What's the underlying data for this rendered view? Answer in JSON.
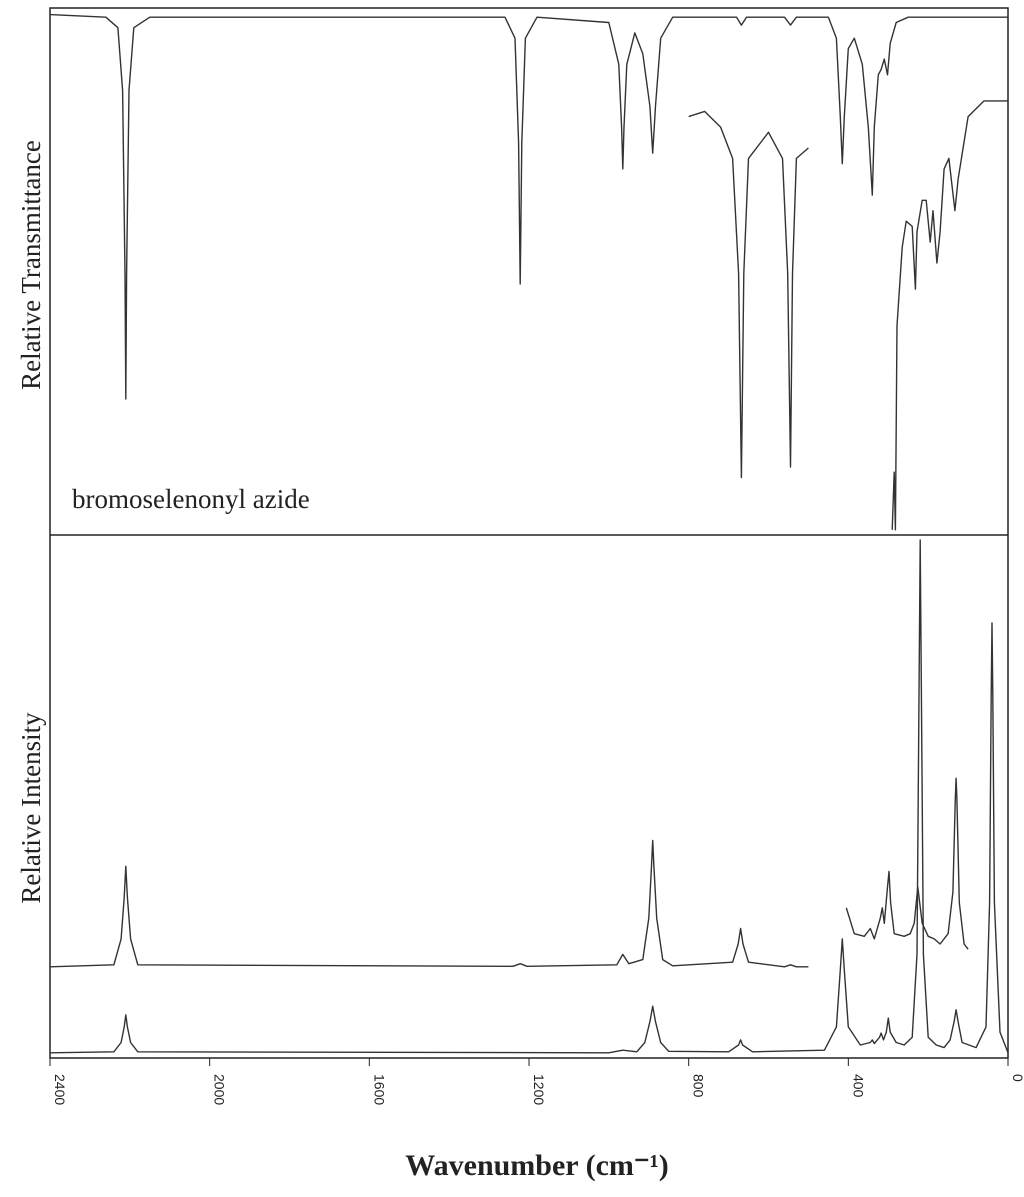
{
  "chart_data": [
    {
      "type": "line",
      "y_label": "Relative Transmittance",
      "annotation": "bromoselenonyl azide",
      "xlim": [
        2400,
        0
      ],
      "ylim": [
        0,
        1
      ],
      "series": [
        {
          "color": "#333333",
          "x": [
            2400,
            2260,
            2230,
            2218,
            2212,
            2210,
            2208,
            2202,
            2190,
            2150,
            1260,
            1235,
            1226,
            1222,
            1218,
            1209,
            1180,
            1000,
            975,
            968,
            965,
            962,
            955,
            935,
            915,
            897,
            890,
            883,
            870,
            840,
            680,
            668,
            655,
            560,
            545,
            530,
            450,
            430,
            420,
            415,
            410,
            400,
            385,
            365,
            350,
            340,
            335,
            325,
            318,
            310,
            302,
            295,
            280,
            250,
            0
          ],
          "values": [
            0.995,
            0.99,
            0.97,
            0.85,
            0.5,
            0.26,
            0.5,
            0.85,
            0.97,
            0.99,
            0.99,
            0.95,
            0.75,
            0.48,
            0.75,
            0.95,
            0.99,
            0.98,
            0.9,
            0.78,
            0.7,
            0.78,
            0.9,
            0.96,
            0.92,
            0.82,
            0.73,
            0.82,
            0.95,
            0.99,
            0.99,
            0.975,
            0.99,
            0.99,
            0.975,
            0.99,
            0.99,
            0.95,
            0.8,
            0.71,
            0.8,
            0.93,
            0.95,
            0.9,
            0.78,
            0.65,
            0.78,
            0.88,
            0.89,
            0.91,
            0.88,
            0.94,
            0.98,
            0.99,
            0.99
          ]
        },
        {
          "color": "#333333",
          "x": [
            800,
            760,
            720,
            690,
            675,
            668,
            662,
            650,
            600,
            565,
            552,
            545,
            540,
            530,
            500
          ],
          "values": [
            0.8,
            0.81,
            0.78,
            0.72,
            0.5,
            0.11,
            0.5,
            0.72,
            0.77,
            0.72,
            0.5,
            0.13,
            0.5,
            0.72,
            0.74
          ]
        },
        {
          "color": "#333333",
          "x": [
            290,
            285,
            282,
            278,
            265,
            255,
            240,
            232,
            228,
            215,
            205,
            195,
            188,
            178,
            170,
            160,
            148,
            133,
            125,
            100,
            60,
            20,
            0
          ],
          "values": [
            0.01,
            0.12,
            0.01,
            0.4,
            0.55,
            0.6,
            0.59,
            0.47,
            0.58,
            0.64,
            0.64,
            0.56,
            0.62,
            0.52,
            0.58,
            0.7,
            0.72,
            0.62,
            0.68,
            0.8,
            0.83,
            0.83,
            0.83
          ]
        }
      ]
    },
    {
      "type": "line",
      "y_label": "Relative Intensity",
      "x_label": "Wavenumber (cm⁻¹)",
      "xlim": [
        2400,
        0
      ],
      "ylim": [
        0,
        1
      ],
      "xticks": [
        2400,
        2000,
        1600,
        1200,
        800,
        400,
        0
      ],
      "series": [
        {
          "color": "#333333",
          "x": [
            2400,
            2240,
            2222,
            2214,
            2210,
            2206,
            2198,
            2180,
            1000,
            965,
            930,
            910,
            897,
            890,
            883,
            870,
            850,
            700,
            675,
            670,
            665,
            640,
            460,
            430,
            420,
            415,
            410,
            400,
            370,
            345,
            340,
            335,
            322,
            318,
            312,
            305,
            300,
            295,
            280,
            260,
            240,
            228,
            222,
            220,
            218,
            212,
            200,
            180,
            160,
            145,
            135,
            130,
            125,
            115,
            80,
            55,
            46,
            42,
            40,
            38,
            34,
            20,
            0
          ],
          "values": [
            0.01,
            0.012,
            0.03,
            0.06,
            0.083,
            0.06,
            0.03,
            0.012,
            0.01,
            0.015,
            0.012,
            0.03,
            0.07,
            0.1,
            0.07,
            0.03,
            0.013,
            0.012,
            0.025,
            0.035,
            0.025,
            0.012,
            0.015,
            0.06,
            0.17,
            0.23,
            0.17,
            0.06,
            0.025,
            0.03,
            0.035,
            0.028,
            0.04,
            0.048,
            0.035,
            0.05,
            0.077,
            0.05,
            0.03,
            0.025,
            0.04,
            0.2,
            0.8,
            1.0,
            0.8,
            0.2,
            0.04,
            0.025,
            0.02,
            0.035,
            0.07,
            0.093,
            0.07,
            0.03,
            0.02,
            0.06,
            0.3,
            0.7,
            0.84,
            0.7,
            0.3,
            0.05,
            0.01
          ]
        },
        {
          "color": "#333333",
          "x": [
            2400,
            2240,
            2222,
            2214,
            2210,
            2206,
            2198,
            2180,
            1240,
            1222,
            1205,
            980,
            965,
            950,
            915,
            900,
            893,
            890,
            887,
            880,
            865,
            840,
            690,
            676,
            670,
            664,
            650,
            560,
            545,
            530,
            500,
            450,
            405,
            385,
            360,
            345,
            335,
            320,
            315,
            310,
            302,
            298,
            294,
            285,
            260,
            245,
            235,
            226,
            215,
            200,
            185,
            170,
            150,
            138,
            132,
            130,
            128,
            122,
            110,
            100
          ],
          "values": [
            0.176,
            0.18,
            0.23,
            0.31,
            0.37,
            0.31,
            0.23,
            0.18,
            0.177,
            0.182,
            0.177,
            0.18,
            0.2,
            0.182,
            0.19,
            0.27,
            0.37,
            0.42,
            0.37,
            0.27,
            0.19,
            0.178,
            0.185,
            0.22,
            0.25,
            0.22,
            0.185,
            0.176,
            0.18,
            0.176,
            0.176,
            null,
            0.29,
            0.24,
            0.235,
            0.25,
            0.23,
            0.27,
            0.29,
            0.26,
            0.33,
            0.36,
            0.3,
            0.24,
            0.235,
            0.24,
            0.26,
            0.33,
            0.26,
            0.235,
            0.23,
            0.22,
            0.24,
            0.32,
            0.5,
            0.54,
            0.5,
            0.3,
            0.22,
            0.21
          ]
        }
      ]
    }
  ]
}
